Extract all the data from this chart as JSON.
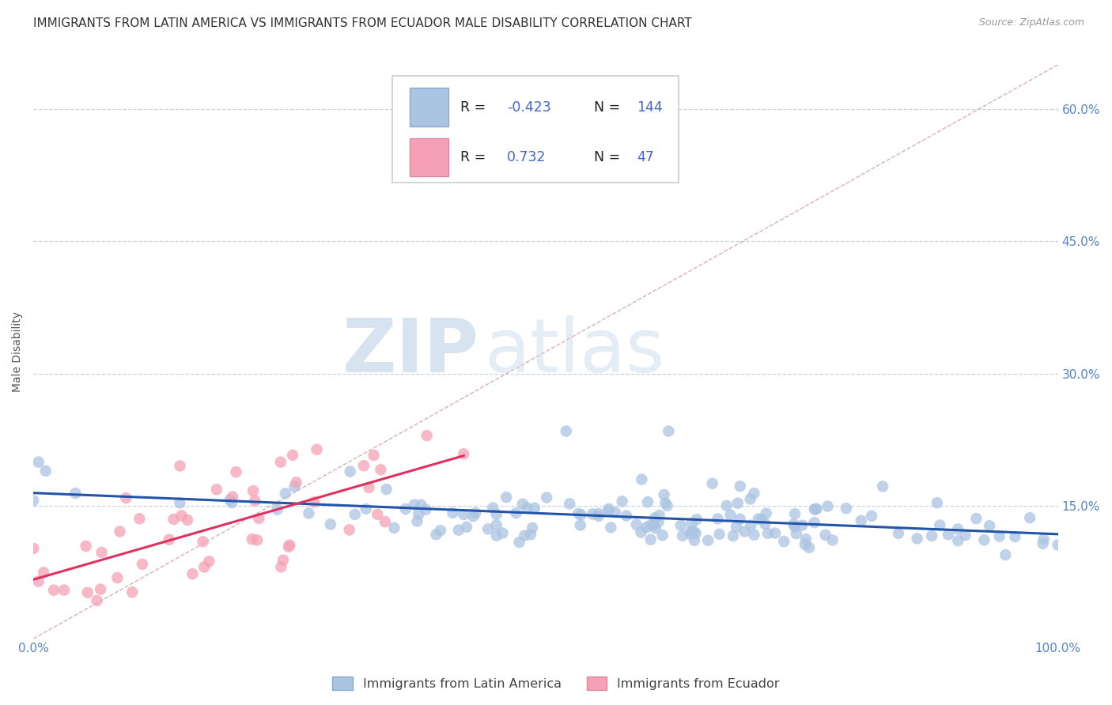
{
  "title": "IMMIGRANTS FROM LATIN AMERICA VS IMMIGRANTS FROM ECUADOR MALE DISABILITY CORRELATION CHART",
  "source": "Source: ZipAtlas.com",
  "ylabel": "Male Disability",
  "xlim": [
    0.0,
    1.0
  ],
  "ylim": [
    0.0,
    0.65
  ],
  "x_tick_positions": [
    0.0,
    1.0
  ],
  "x_tick_labels": [
    "0.0%",
    "100.0%"
  ],
  "y_ticks": [
    0.15,
    0.3,
    0.45,
    0.6
  ],
  "y_tick_labels": [
    "15.0%",
    "30.0%",
    "45.0%",
    "60.0%"
  ],
  "legend_blue_label": "Immigrants from Latin America",
  "legend_pink_label": "Immigrants from Ecuador",
  "R_blue": "-0.423",
  "N_blue": "144",
  "R_pink": "0.732",
  "N_pink": "47",
  "blue_color": "#aac4e2",
  "blue_line_color": "#2255aa",
  "pink_color": "#f5a0b5",
  "pink_line_color": "#e03060",
  "diag_line_color": "#d8b0b8",
  "watermark_zip": "ZIP",
  "watermark_atlas": "atlas",
  "background_color": "#ffffff",
  "grid_color": "#c8d4e0",
  "title_fontsize": 11,
  "axis_label_fontsize": 10,
  "tick_fontsize": 11,
  "legend_fontsize": 11,
  "blue_intercept": 0.155,
  "blue_slope": -0.045,
  "pink_intercept": 0.04,
  "pink_slope": 0.9
}
